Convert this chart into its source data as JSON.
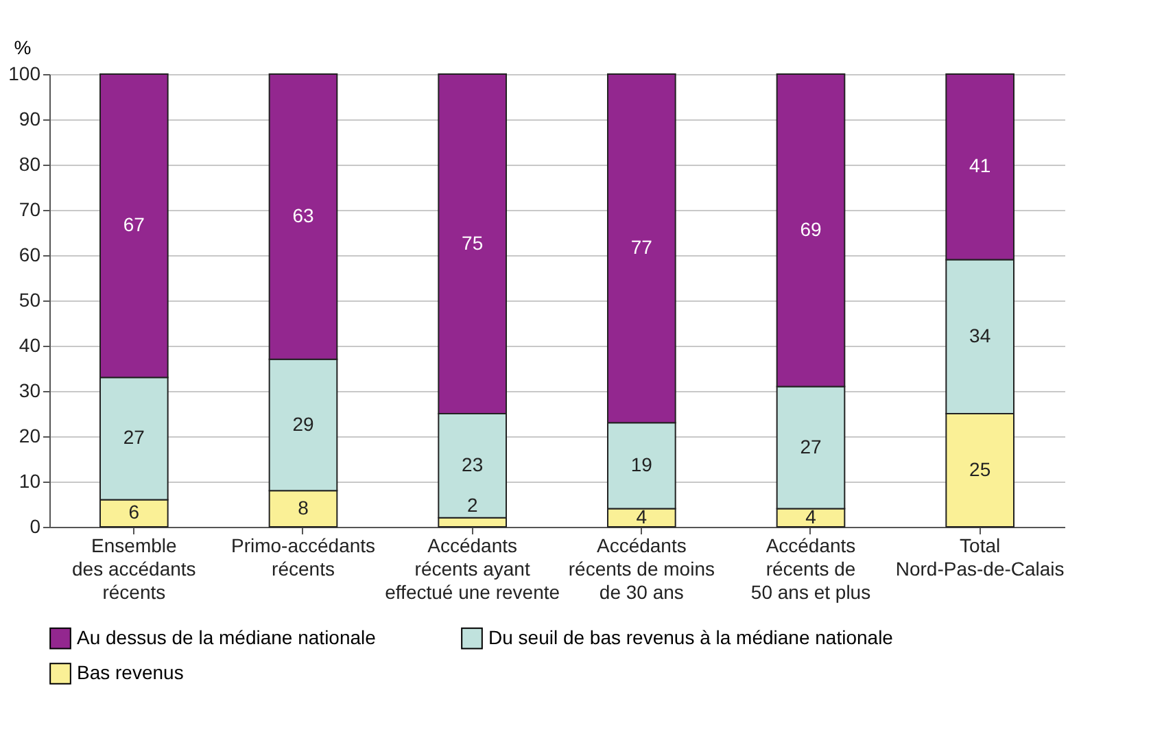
{
  "chart_data": {
    "type": "bar",
    "stacked": true,
    "ylabel": "%",
    "categories": [
      "Ensemble\ndes accédants\nrécents",
      "Primo-accédants\nrécents",
      "Accédants\nrécents ayant\neffectué une revente",
      "Accédants\nrécents de moins\nde 30 ans",
      "Accédants\nrécents de\n50 ans et plus",
      "Total\nNord-Pas-de-Calais"
    ],
    "series": [
      {
        "name": "Bas revenus",
        "color": "#faf096",
        "values": [
          6,
          8,
          2,
          4,
          4,
          25
        ]
      },
      {
        "name": "Du seuil de bas revenus à la médiane nationale",
        "color": "#c0e2dd",
        "values": [
          27,
          29,
          23,
          19,
          27,
          34
        ]
      },
      {
        "name": "Au dessus de la médiane nationale",
        "color": "#93278f",
        "values": [
          67,
          63,
          75,
          77,
          69,
          41
        ]
      }
    ],
    "ylim": [
      0,
      100
    ],
    "yticks": [
      0,
      10,
      20,
      30,
      40,
      50,
      60,
      70,
      80,
      90,
      100
    ],
    "grid": "y",
    "legend": "bottom",
    "data_labels": true
  }
}
